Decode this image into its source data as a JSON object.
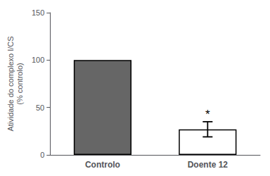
{
  "chart_data": {
    "type": "bar",
    "categories": [
      "Controlo",
      "Doente 12"
    ],
    "values": [
      100,
      27
    ],
    "errors": [
      0,
      8
    ],
    "colors": [
      "#666666",
      "#ffffff"
    ],
    "ylabel": "Atividade do complexo I/CS\n(% controlo)",
    "ylim": [
      0,
      150
    ],
    "yticks": [
      0,
      50,
      100,
      150
    ],
    "grid": false,
    "annotations": [
      {
        "category": "Doente 12",
        "text": "*"
      }
    ]
  }
}
